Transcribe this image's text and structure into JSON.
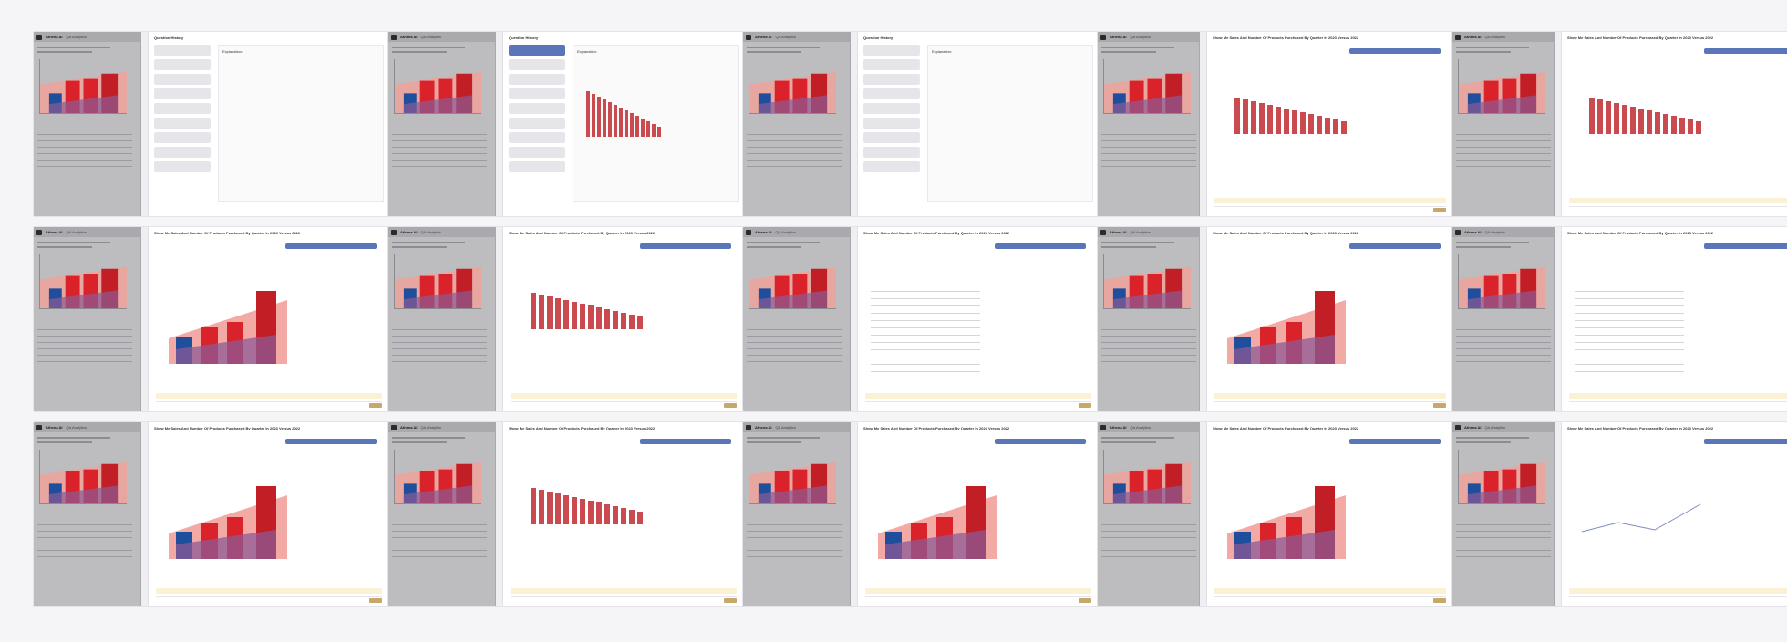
{
  "app": {
    "name": "Athena AI",
    "tab": "QA Analytics"
  },
  "history": {
    "title": "Question History",
    "explanation_label": "Explanation:"
  },
  "query": {
    "title": "Show Me Sales And Number Of Products Purchased By Quarter In 2023 Versus 2022"
  },
  "colors": {
    "sidebar": "#bdbdbf",
    "bar_blue": "#1f4e9c",
    "bar_red": "#d9222a",
    "bar_pink": "#f29a95",
    "bar_purple": "#8c5a96",
    "accent": "#5b76b8",
    "send": "#c8a86a"
  },
  "tiles": [
    {
      "kind": "history"
    },
    {
      "kind": "history-bars"
    },
    {
      "kind": "history-empty"
    },
    {
      "kind": "chat-bars"
    },
    {
      "kind": "chat-bars"
    },
    {
      "kind": "chat-area"
    },
    {
      "kind": "chat-bars"
    },
    {
      "kind": "chat-table"
    },
    {
      "kind": "chat-area"
    },
    {
      "kind": "table-only"
    },
    {
      "kind": "chat-area"
    },
    {
      "kind": "chat-bars"
    },
    {
      "kind": "chat-area"
    },
    {
      "kind": "chat-area"
    },
    {
      "kind": "chat-line"
    }
  ]
}
